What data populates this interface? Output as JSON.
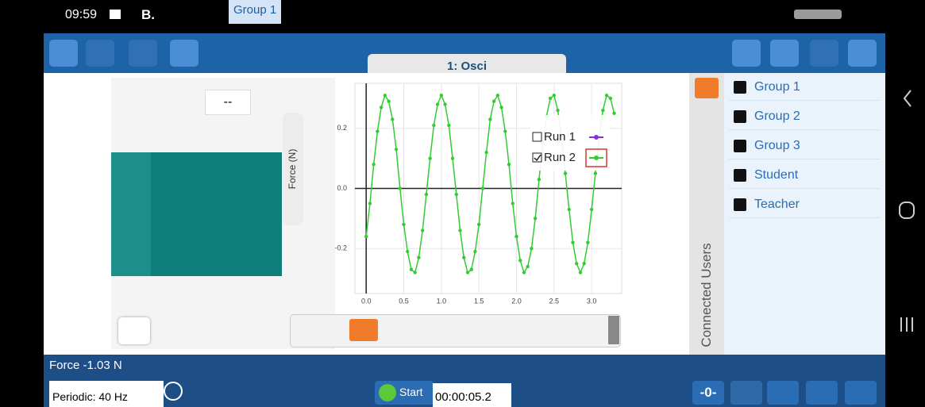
{
  "status_bar": {
    "time": "09:59",
    "carrier": "B.",
    "tag": "Group 1"
  },
  "tab": {
    "title": "1: Osci"
  },
  "meter": {
    "display": "--"
  },
  "chart_data": {
    "type": "line",
    "y_label": "Force (N)",
    "series": [
      {
        "name": "Run 1",
        "color": "#8a2be2",
        "checked": false
      },
      {
        "name": "Run 2",
        "color": "#33cc33",
        "checked": true,
        "x": [
          0,
          0.05,
          0.1,
          0.15,
          0.2,
          0.25,
          0.3,
          0.35,
          0.4,
          0.45,
          0.5,
          0.55,
          0.6,
          0.65,
          0.7,
          0.75,
          0.8,
          0.85,
          0.9,
          0.95,
          1,
          1.05,
          1.1,
          1.15,
          1.2,
          1.25,
          1.3,
          1.35,
          1.4,
          1.45,
          1.5,
          1.55,
          1.6,
          1.65,
          1.7,
          1.75,
          1.8,
          1.85,
          1.9,
          1.95,
          2,
          2.05,
          2.1,
          2.15,
          2.2,
          2.25,
          2.3,
          2.35,
          2.4,
          2.45,
          2.5,
          2.55,
          2.6,
          2.65,
          2.7,
          2.75,
          2.8,
          2.85,
          2.9,
          2.95,
          3,
          3.05,
          3.1,
          3.15,
          3.2,
          3.25,
          3.3
        ],
        "values": [
          -0.16,
          -0.05,
          0.08,
          0.19,
          0.27,
          0.31,
          0.29,
          0.23,
          0.13,
          0,
          -0.12,
          -0.21,
          -0.27,
          -0.28,
          -0.23,
          -0.14,
          -0.02,
          0.1,
          0.21,
          0.28,
          0.31,
          0.28,
          0.21,
          0.1,
          -0.02,
          -0.14,
          -0.23,
          -0.28,
          -0.27,
          -0.21,
          -0.12,
          0,
          0.12,
          0.23,
          0.29,
          0.31,
          0.27,
          0.19,
          0.08,
          -0.05,
          -0.16,
          -0.24,
          -0.28,
          -0.26,
          -0.2,
          -0.1,
          0.03,
          0.15,
          0.24,
          0.3,
          0.31,
          0.26,
          0.17,
          0.05,
          -0.07,
          -0.18,
          -0.25,
          -0.28,
          -0.25,
          -0.18,
          -0.07,
          0.05,
          0.17,
          0.26,
          0.31,
          0.3,
          0.25
        ]
      }
    ],
    "xlim": [
      -0.15,
      3.4
    ],
    "ylim": [
      -0.35,
      0.35
    ],
    "xticks": [
      {
        "value": 0,
        "label": "0.0"
      },
      0.5,
      {
        "value": 1,
        "label": "1.0"
      },
      1.5,
      {
        "value": 2,
        "label": "2.0"
      },
      2.5,
      {
        "value": 3,
        "label": "3.0"
      }
    ],
    "yticks": [
      -0.2,
      {
        "value": 0,
        "label": "0.0"
      },
      0.2
    ],
    "grid": true
  },
  "side_panel": {
    "title": "Connected Users",
    "users": [
      "Group 1",
      "Group 2",
      "Group 3",
      "Student",
      "Teacher"
    ]
  },
  "footer": {
    "sensor": "Force -1.03 N",
    "mode": "Periodic: 40 Hz",
    "start": "Start",
    "timer": "00:00:05.2",
    "zero": "-0-"
  }
}
